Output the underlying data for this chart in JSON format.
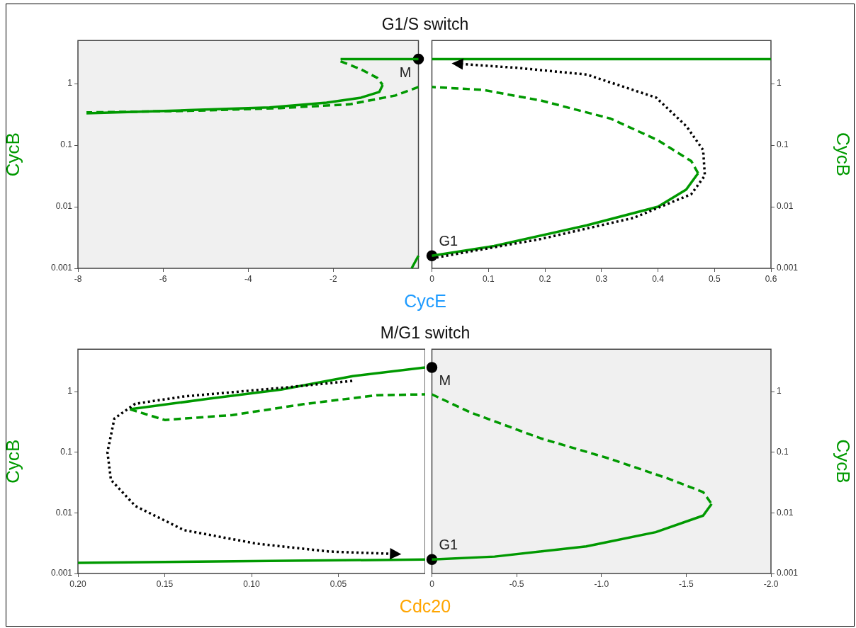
{
  "chart_data": [
    {
      "type": "line",
      "title": "G1/S switch",
      "xlabel": "CycE",
      "ylabel": "CycB",
      "xlim": [
        -8,
        0
      ],
      "xticks": [
        -8,
        -6,
        -4,
        -2
      ],
      "ylim": [
        0.001,
        5
      ],
      "yticks": [
        0.001,
        0.01,
        0.1,
        1
      ],
      "log": "y",
      "bands": [
        {
          "axis": "x",
          "from": -8,
          "to": 0,
          "color": "#f0f0f0"
        }
      ],
      "series": [
        {
          "type": "line",
          "color": "#009900",
          "line_style": "solid",
          "x": [
            0,
            -1.83
          ],
          "values": [
            2.5,
            2.5
          ]
        },
        {
          "type": "line",
          "color": "#009900",
          "line_style": "dashed",
          "x": [
            -1.83,
            -1.35,
            -0.97,
            -0.84
          ],
          "values": [
            2.3,
            1.7,
            1.24,
            0.95
          ]
        },
        {
          "type": "line",
          "color": "#009900",
          "line_style": "solid",
          "x": [
            -0.84,
            -0.92,
            -1.35,
            -2.16,
            -3.5,
            -5.4,
            -7.8
          ],
          "values": [
            0.95,
            0.73,
            0.59,
            0.49,
            0.41,
            0.37,
            0.33
          ]
        },
        {
          "type": "line",
          "color": "#009900",
          "line_style": "dashed",
          "x": [
            0,
            -0.54,
            -1.62,
            -3.24,
            -5.4,
            -7.8
          ],
          "values": [
            0.88,
            0.64,
            0.46,
            0.4,
            0.36,
            0.34
          ]
        },
        {
          "type": "line",
          "color": "#009900",
          "line_style": "solid",
          "x": [
            -0.16,
            0
          ],
          "values": [
            0.001,
            0.0016
          ]
        },
        {
          "type": "scatter",
          "name": "M",
          "color": "#000000",
          "marker": "circle",
          "x": [
            0
          ],
          "values": [
            2.5
          ]
        }
      ]
    },
    {
      "type": "line",
      "y2label": "CycB",
      "xlim": [
        0,
        0.6
      ],
      "xticks": [
        0,
        0.1,
        0.2,
        0.3,
        0.4,
        0.5,
        0.6
      ],
      "y2lim": [
        0.001,
        5
      ],
      "y2ticks": [
        0.001,
        0.01,
        0.1,
        1
      ],
      "log": "y2",
      "series": [
        {
          "type": "line",
          "axis": "y2",
          "color": "#009900",
          "line_style": "solid",
          "x": [
            0,
            0.6
          ],
          "values": [
            2.5,
            2.5
          ]
        },
        {
          "type": "line",
          "axis": "y2",
          "color": "#009900",
          "line_style": "solid",
          "x": [
            0,
            0.11,
            0.274,
            0.4,
            0.45,
            0.471
          ],
          "values": [
            0.0016,
            0.0023,
            0.005,
            0.01,
            0.019,
            0.035
          ]
        },
        {
          "type": "line",
          "axis": "y2",
          "color": "#009900",
          "line_style": "dashed",
          "x": [
            0.471,
            0.459,
            0.4,
            0.316,
            0.193,
            0.09,
            0
          ],
          "values": [
            0.035,
            0.055,
            0.12,
            0.27,
            0.53,
            0.79,
            0.88
          ]
        },
        {
          "type": "line",
          "axis": "y2",
          "color": "#000000",
          "line_style": "dotted",
          "x": [
            0.008,
            0.193,
            0.357,
            0.459,
            0.483,
            0.48,
            0.451,
            0.397,
            0.274,
            0.151,
            0.045
          ],
          "values": [
            0.0015,
            0.003,
            0.0066,
            0.016,
            0.032,
            0.083,
            0.2,
            0.59,
            1.4,
            1.8,
            2.1
          ]
        },
        {
          "type": "scatter",
          "axis": "y2",
          "name": "G1",
          "color": "#000000",
          "marker": "circle",
          "x": [
            0
          ],
          "values": [
            0.0016
          ]
        }
      ]
    },
    {
      "type": "line",
      "title": "M/G1 switch",
      "xlabel": "Cdc20",
      "ylabel": "CycB",
      "xlim": [
        0.2,
        0
      ],
      "xticks": [
        {
          "value": 0.2,
          "label": "0.20"
        },
        0.15,
        {
          "value": 0.1,
          "label": "0.10"
        },
        0.05
      ],
      "ylim": [
        0.001,
        5
      ],
      "yticks": [
        0.001,
        0.01,
        0.1,
        1
      ],
      "log": "y",
      "series": [
        {
          "type": "line",
          "color": "#009900",
          "line_style": "solid",
          "x": [
            0,
            0.0417,
            0.083,
            0.125,
            0.17
          ],
          "values": [
            2.5,
            1.8,
            1.08,
            0.76,
            0.51
          ]
        },
        {
          "type": "line",
          "color": "#009900",
          "line_style": "dashed",
          "x": [
            0.17,
            0.15,
            0.111,
            0.07,
            0.028,
            0
          ],
          "values": [
            0.51,
            0.34,
            0.41,
            0.62,
            0.87,
            0.9
          ]
        },
        {
          "type": "line",
          "color": "#009900",
          "line_style": "solid",
          "x": [
            0.2,
            0
          ],
          "values": [
            0.0015,
            0.0017
          ]
        },
        {
          "type": "line",
          "color": "#000000",
          "line_style": "dotted",
          "x": [
            0.042,
            0.083,
            0.139,
            0.167,
            0.179,
            0.183,
            0.181,
            0.167,
            0.139,
            0.097,
            0.055,
            0.017
          ],
          "values": [
            1.5,
            1.15,
            0.83,
            0.63,
            0.36,
            0.1,
            0.035,
            0.013,
            0.0052,
            0.0031,
            0.0023,
            0.0021
          ]
        }
      ]
    },
    {
      "type": "line",
      "y2label": "CycB",
      "xlim": [
        0,
        -2
      ],
      "xticks": [
        0,
        -0.5,
        {
          "value": -1,
          "label": "-1.0"
        },
        -1.5,
        {
          "value": -2,
          "label": "-2.0"
        }
      ],
      "y2lim": [
        0.001,
        5
      ],
      "y2ticks": [
        0.001,
        0.01,
        0.1,
        1
      ],
      "log": "y2",
      "bands": [
        {
          "axis": "x",
          "from": 0,
          "to": -2,
          "color": "#f0f0f0"
        }
      ],
      "series": [
        {
          "type": "line",
          "axis": "y2",
          "color": "#009900",
          "line_style": "dashed",
          "x": [
            0,
            -0.23,
            -0.64,
            -1.05,
            -1.39,
            -1.6,
            -1.65
          ],
          "values": [
            0.9,
            0.45,
            0.17,
            0.078,
            0.037,
            0.022,
            0.014
          ]
        },
        {
          "type": "line",
          "axis": "y2",
          "color": "#009900",
          "line_style": "solid",
          "x": [
            -1.65,
            -1.6,
            -1.32,
            -0.91,
            -0.37,
            0
          ],
          "values": [
            0.014,
            0.009,
            0.0048,
            0.0028,
            0.0019,
            0.0017
          ]
        },
        {
          "type": "scatter",
          "axis": "y2",
          "name": "M",
          "color": "#000000",
          "marker": "circle",
          "x": [
            0
          ],
          "values": [
            2.5
          ]
        },
        {
          "type": "scatter",
          "axis": "y2",
          "name": "G1",
          "color": "#000000",
          "marker": "circle",
          "x": [
            0
          ],
          "values": [
            0.0017
          ]
        }
      ]
    }
  ]
}
